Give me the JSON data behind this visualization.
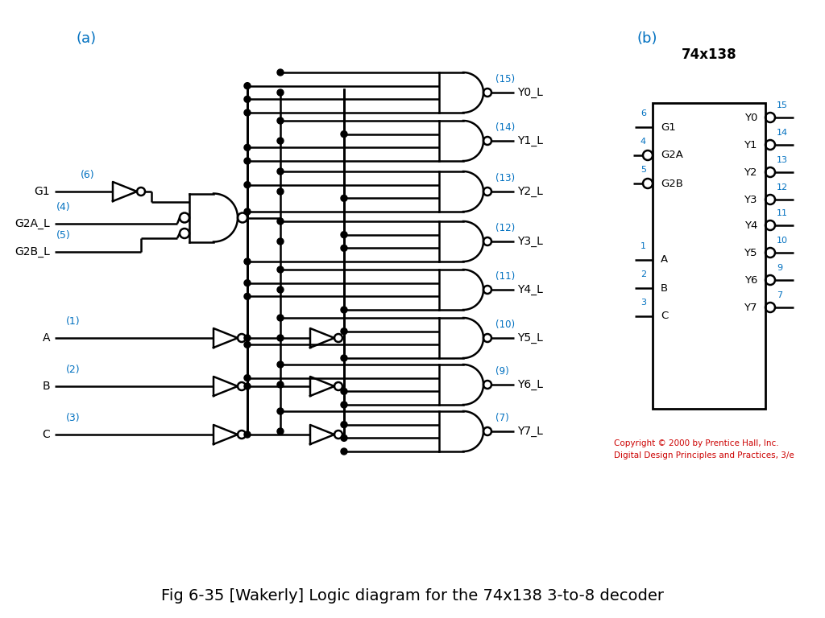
{
  "title": "Fig 6-35 [Wakerly] Logic diagram for the 74x138 3-to-8 decoder",
  "title_fontsize": 14,
  "label_a": "(a)",
  "label_b": "(b)",
  "blue_color": "#0070C0",
  "black_color": "#000000",
  "red_color": "#CC0000",
  "bg_color": "#FFFFFF",
  "copyright_text": "Copyright © 2000 by Prentice Hall, Inc.\nDigital Design Principles and Practices, 3/e",
  "ic_title": "74x138",
  "output_labels": [
    "Y0_L",
    "Y1_L",
    "Y2_L",
    "Y3_L",
    "Y4_L",
    "Y5_L",
    "Y6_L",
    "Y7_L"
  ],
  "output_pins": [
    15,
    14,
    13,
    12,
    11,
    10,
    9,
    7
  ],
  "ic_left_labels": [
    "G1",
    "G2A",
    "G2B",
    "A",
    "B",
    "C"
  ],
  "ic_left_pins": [
    6,
    4,
    5,
    1,
    2,
    3
  ],
  "ic_left_bubbles": [
    false,
    true,
    true,
    false,
    false,
    false
  ],
  "ic_right_labels": [
    "Y0",
    "Y1",
    "Y2",
    "Y3",
    "Y4",
    "Y5",
    "Y6",
    "Y7"
  ],
  "ic_right_pins": [
    15,
    14,
    13,
    12,
    11,
    10,
    9,
    7
  ]
}
